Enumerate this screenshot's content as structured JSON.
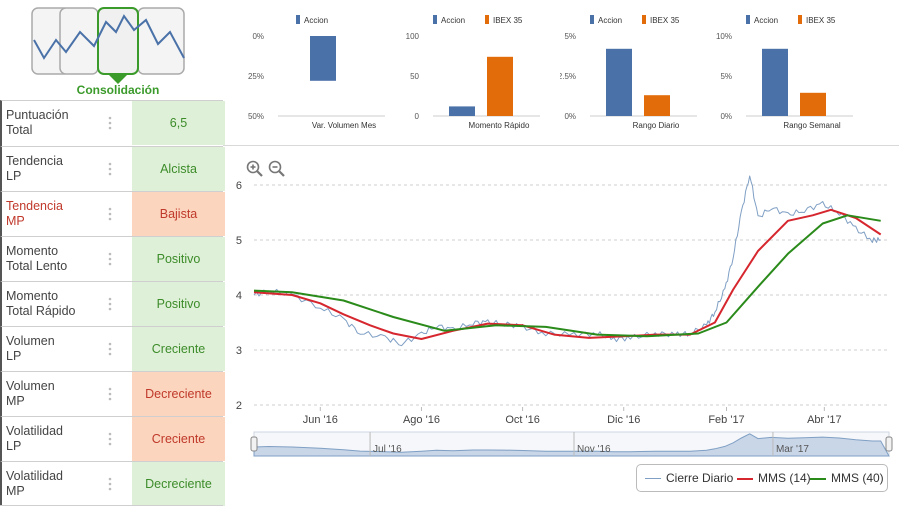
{
  "logo": {
    "caption": "Consolidación",
    "icon": "line-chart-consolidation-icon",
    "accent": "#3a9a2a"
  },
  "indicators": [
    {
      "label_lines": [
        "Puntuación",
        "Total"
      ],
      "value": "6,5",
      "status": "good"
    },
    {
      "label_lines": [
        "Tendencia",
        "LP"
      ],
      "value": "Alcista",
      "status": "good"
    },
    {
      "label_lines": [
        "Tendencia",
        "MP"
      ],
      "value": "Bajista",
      "status": "bad"
    },
    {
      "label_lines": [
        "Momento",
        "Total Lento"
      ],
      "value": "Positivo",
      "status": "good"
    },
    {
      "label_lines": [
        "Momento",
        "Total Rápido"
      ],
      "value": "Positivo",
      "status": "good"
    },
    {
      "label_lines": [
        "Volumen",
        "LP"
      ],
      "value": "Creciente",
      "status": "good"
    },
    {
      "label_lines": [
        "Volumen",
        "MP"
      ],
      "value": "Decreciente",
      "status": "bad"
    },
    {
      "label_lines": [
        "Volatilidad",
        "LP"
      ],
      "value": "Creciente",
      "status": "bad"
    },
    {
      "label_lines": [
        "Volatilidad",
        "MP"
      ],
      "value": "Decreciente",
      "status": "good"
    }
  ],
  "colors": {
    "accion": "#4a72a8",
    "ibex": "#e36c0a",
    "good_bg": "#dff0d8",
    "bad_bg": "#fbd5bd",
    "close": "#7f9fc4",
    "mms14": "#d6262e",
    "mms40": "#2a8a1a"
  },
  "chart_data": [
    {
      "type": "bar",
      "title": "Var. Volumen Mes",
      "series": [
        {
          "name": "Accion",
          "values": [
            -28
          ]
        }
      ],
      "tick_labels": [
        "0%",
        "-25%",
        "-50%"
      ],
      "ylim": [
        -50,
        0
      ]
    },
    {
      "type": "bar",
      "title": "Momento Rápido",
      "series": [
        {
          "name": "Accion",
          "values": [
            12
          ]
        },
        {
          "name": "IBEX 35",
          "values": [
            74
          ]
        }
      ],
      "tick_labels": [
        "100",
        "50",
        "0"
      ],
      "ylim": [
        0,
        100
      ]
    },
    {
      "type": "bar",
      "title": "Rango Diario",
      "series": [
        {
          "name": "Accion",
          "values": [
            4.2
          ]
        },
        {
          "name": "IBEX 35",
          "values": [
            1.3
          ]
        }
      ],
      "tick_labels": [
        "5%",
        "2.5%",
        "0%"
      ],
      "ylim": [
        0,
        5
      ]
    },
    {
      "type": "bar",
      "title": "Rango Semanal",
      "series": [
        {
          "name": "Accion",
          "values": [
            8.4
          ]
        },
        {
          "name": "IBEX 35",
          "values": [
            2.9
          ]
        }
      ],
      "tick_labels": [
        "10%",
        "5%",
        "0%"
      ],
      "ylim": [
        0,
        10
      ]
    },
    {
      "type": "line",
      "x_tick_labels": [
        "Jun '16",
        "Ago '16",
        "Oct '16",
        "Dic '16",
        "Feb '17",
        "Abr '17"
      ],
      "y_tick_labels": [
        "6",
        "5",
        "4",
        "3",
        "2"
      ],
      "ylim": [
        2,
        6
      ],
      "xlim": [
        "2016-04-22",
        "2017-05-10"
      ],
      "grid": true,
      "legend": "bottom-right",
      "navigator_labels": [
        "Jul '16",
        "Nov '16",
        "Mar '17"
      ],
      "series": [
        {
          "name": "Cierre Diario",
          "x": [
            "2016-04-22",
            "2016-05-01",
            "2016-05-15",
            "2016-06-01",
            "2016-06-15",
            "2016-06-25",
            "2016-07-10",
            "2016-07-20",
            "2016-08-01",
            "2016-08-10",
            "2016-08-20",
            "2016-09-01",
            "2016-09-10",
            "2016-09-20",
            "2016-10-01",
            "2016-10-15",
            "2016-11-01",
            "2016-11-15",
            "2016-11-25",
            "2016-12-05",
            "2016-12-20",
            "2017-01-01",
            "2017-01-10",
            "2017-01-20",
            "2017-01-25",
            "2017-01-31",
            "2017-02-05",
            "2017-02-10",
            "2017-02-15",
            "2017-02-20",
            "2017-02-28",
            "2017-03-10",
            "2017-03-20",
            "2017-03-31",
            "2017-04-10",
            "2017-04-20",
            "2017-04-30",
            "2017-05-05"
          ],
          "y": [
            4.0,
            4.08,
            4.0,
            3.78,
            3.55,
            3.32,
            3.22,
            3.12,
            3.28,
            3.45,
            3.36,
            3.5,
            3.5,
            3.48,
            3.42,
            3.3,
            3.28,
            3.3,
            3.2,
            3.22,
            3.3,
            3.28,
            3.3,
            3.45,
            3.7,
            4.1,
            4.7,
            5.5,
            6.2,
            5.4,
            5.6,
            5.45,
            5.55,
            5.65,
            5.5,
            5.2,
            5.0,
            5.0
          ]
        },
        {
          "name": "MMS (14)",
          "x": [
            "2016-04-22",
            "2016-05-15",
            "2016-06-01",
            "2016-06-15",
            "2016-07-01",
            "2016-07-15",
            "2016-08-01",
            "2016-08-20",
            "2016-09-10",
            "2016-10-01",
            "2016-10-20",
            "2016-11-10",
            "2016-12-01",
            "2016-12-20",
            "2017-01-10",
            "2017-01-25",
            "2017-02-05",
            "2017-02-20",
            "2017-03-10",
            "2017-03-25",
            "2017-04-05",
            "2017-04-20",
            "2017-05-05"
          ],
          "y": [
            4.05,
            4.0,
            3.85,
            3.65,
            3.45,
            3.3,
            3.2,
            3.35,
            3.48,
            3.45,
            3.28,
            3.22,
            3.25,
            3.28,
            3.28,
            3.5,
            4.1,
            4.8,
            5.35,
            5.45,
            5.55,
            5.4,
            5.1
          ]
        },
        {
          "name": "MMS (40)",
          "x": [
            "2016-04-22",
            "2016-05-15",
            "2016-06-15",
            "2016-07-15",
            "2016-08-15",
            "2016-09-15",
            "2016-10-15",
            "2016-11-15",
            "2016-12-15",
            "2017-01-15",
            "2017-02-01",
            "2017-02-20",
            "2017-03-10",
            "2017-03-31",
            "2017-04-15",
            "2017-05-05"
          ],
          "y": [
            4.08,
            4.05,
            3.9,
            3.6,
            3.35,
            3.45,
            3.42,
            3.28,
            3.25,
            3.3,
            3.5,
            4.15,
            4.75,
            5.3,
            5.45,
            5.35
          ]
        }
      ]
    }
  ]
}
